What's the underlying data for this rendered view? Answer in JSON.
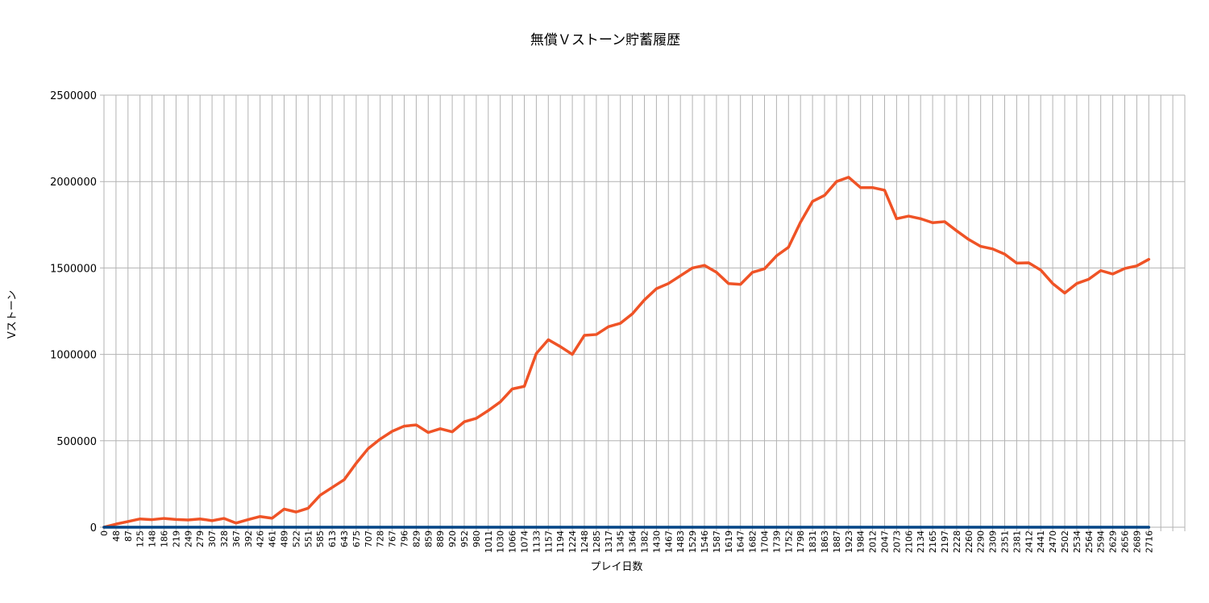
{
  "chart_data": {
    "type": "line",
    "title": "無償Ｖストーン貯蓄履歴",
    "xlabel": "プレイ日数",
    "ylabel": "Vストーン",
    "ylim": [
      0,
      2500000
    ],
    "yticks": [
      0,
      500000,
      1000000,
      1500000,
      2000000,
      2500000
    ],
    "ytick_labels": [
      "0",
      "500000",
      "1000000",
      "1500000",
      "2000000",
      "2500000"
    ],
    "grid": true,
    "legend": "none",
    "categories": [
      "0",
      "48",
      "87",
      "125",
      "148",
      "186",
      "219",
      "249",
      "279",
      "307",
      "328",
      "367",
      "392",
      "426",
      "461",
      "489",
      "522",
      "551",
      "585",
      "613",
      "643",
      "675",
      "707",
      "728",
      "767",
      "796",
      "829",
      "859",
      "889",
      "920",
      "952",
      "980",
      "1011",
      "1030",
      "1066",
      "1074",
      "1133",
      "1157",
      "1194",
      "1224",
      "1248",
      "1285",
      "1317",
      "1345",
      "1364",
      "1382",
      "1430",
      "1467",
      "1483",
      "1529",
      "1546",
      "1587",
      "1619",
      "1647",
      "1682",
      "1704",
      "1739",
      "1752",
      "1798",
      "1831",
      "1863",
      "1887",
      "1923",
      "1984",
      "2012",
      "2047",
      "2073",
      "2106",
      "2134",
      "2165",
      "2197",
      "2228",
      "2260",
      "2290",
      "2309",
      "2351",
      "2381",
      "2412",
      "2441",
      "2470",
      "2502",
      "2534",
      "2564",
      "2594",
      "2629",
      "2656",
      "2689",
      "2716"
    ],
    "extra_empty_categories": 3,
    "series": [
      {
        "color": "#ef5326",
        "values": [
          0,
          18000,
          33000,
          48000,
          44000,
          51000,
          45000,
          42000,
          48000,
          38000,
          51000,
          24000,
          44000,
          62000,
          52000,
          105000,
          88000,
          110000,
          185000,
          230000,
          275000,
          370000,
          455000,
          510000,
          555000,
          585000,
          592000,
          548000,
          570000,
          552000,
          610000,
          630000,
          675000,
          725000,
          800000,
          815000,
          1005000,
          1085000,
          1045000,
          1000000,
          1110000,
          1115000,
          1160000,
          1180000,
          1235000,
          1315000,
          1380000,
          1410000,
          1455000,
          1500000,
          1515000,
          1475000,
          1410000,
          1405000,
          1475000,
          1495000,
          1570000,
          1620000,
          1765000,
          1885000,
          1920000,
          2000000,
          2025000,
          1965000,
          1965000,
          1950000,
          1785000,
          1800000,
          1785000,
          1762000,
          1768000,
          1715000,
          1665000,
          1625000,
          1610000,
          1580000,
          1528000,
          1530000,
          1488000,
          1410000,
          1355000,
          1410000,
          1435000,
          1485000,
          1465000,
          1497000,
          1512000,
          1550000
        ]
      },
      {
        "color": "#004586",
        "values": [
          0,
          0,
          0,
          0,
          0,
          0,
          0,
          0,
          0,
          0,
          0,
          0,
          0,
          0,
          0,
          0,
          0,
          0,
          0,
          0,
          0,
          0,
          0,
          0,
          0,
          0,
          0,
          0,
          0,
          0,
          0,
          0,
          0,
          0,
          0,
          0,
          0,
          0,
          0,
          0,
          0,
          0,
          0,
          0,
          0,
          0,
          0,
          0,
          0,
          0,
          0,
          0,
          0,
          0,
          0,
          0,
          0,
          0,
          0,
          0,
          0,
          0,
          0,
          0,
          0,
          0,
          0,
          0,
          0,
          0,
          0,
          0,
          0,
          0,
          0,
          0,
          0,
          0,
          0,
          0,
          0,
          0,
          0,
          0,
          0,
          0,
          0,
          0
        ]
      }
    ]
  }
}
